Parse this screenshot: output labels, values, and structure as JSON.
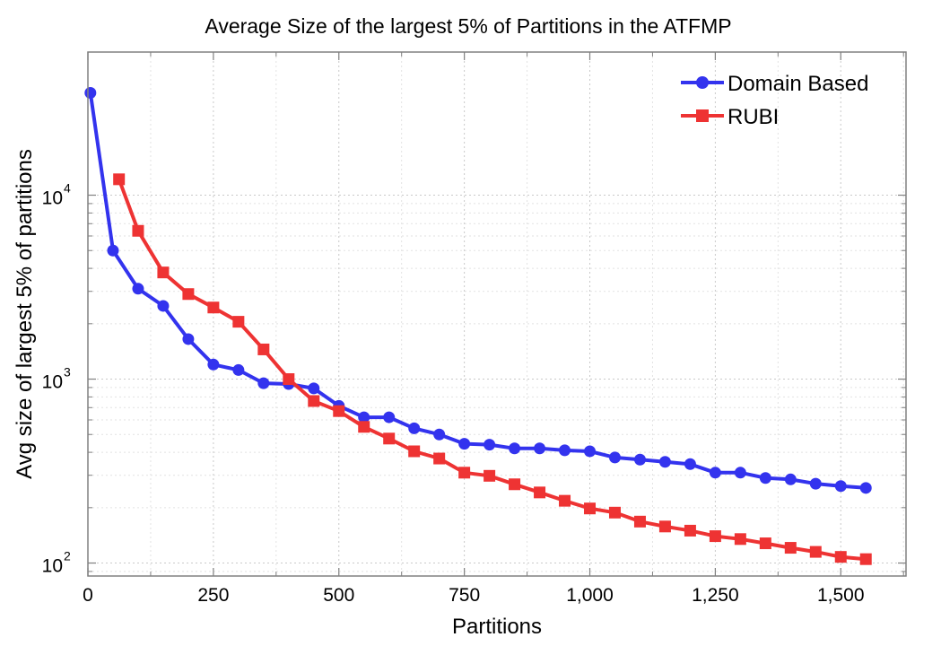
{
  "chart_data": {
    "type": "line",
    "title": "Average Size of the largest 5% of Partitions in the ATFMP",
    "xlabel": "Partitions",
    "ylabel": "Avg size of largest 5% of partitions",
    "xlim": [
      0,
      1630
    ],
    "ylim": [
      85,
      60000
    ],
    "yscale": "log",
    "grid": true,
    "legend_position": "top-right",
    "x_ticks": [
      {
        "value": 0,
        "label": "0"
      },
      {
        "value": 250,
        "label": "250"
      },
      {
        "value": 500,
        "label": "500"
      },
      {
        "value": 750,
        "label": "750"
      },
      {
        "value": 1000,
        "label": "1,000"
      },
      {
        "value": 1250,
        "label": "1,250"
      },
      {
        "value": 1500,
        "label": "1,500"
      }
    ],
    "y_ticks": [
      {
        "value": 100,
        "base": "10",
        "exp": "2"
      },
      {
        "value": 1000,
        "base": "10",
        "exp": "3"
      },
      {
        "value": 10000,
        "base": "10",
        "exp": "4"
      }
    ],
    "series": [
      {
        "name": "Domain Based",
        "color": "#3333ee",
        "marker": "circle",
        "x": [
          5,
          50,
          100,
          150,
          200,
          250,
          300,
          350,
          400,
          450,
          500,
          550,
          600,
          650,
          700,
          750,
          800,
          850,
          900,
          950,
          1000,
          1050,
          1100,
          1150,
          1200,
          1250,
          1300,
          1350,
          1400,
          1450,
          1500,
          1550
        ],
        "y": [
          36000,
          5000,
          3100,
          2500,
          1650,
          1200,
          1120,
          950,
          940,
          890,
          715,
          620,
          620,
          540,
          500,
          445,
          440,
          420,
          420,
          410,
          405,
          375,
          365,
          355,
          345,
          310,
          310,
          290,
          285,
          270,
          262,
          256
        ]
      },
      {
        "name": "RUBI",
        "color": "#ee3333",
        "marker": "square",
        "x": [
          62,
          100,
          150,
          200,
          250,
          300,
          350,
          400,
          450,
          500,
          550,
          600,
          650,
          700,
          750,
          800,
          850,
          900,
          950,
          1000,
          1050,
          1100,
          1150,
          1200,
          1250,
          1300,
          1350,
          1400,
          1450,
          1500,
          1550
        ],
        "y": [
          12200,
          6400,
          3800,
          2900,
          2450,
          2050,
          1450,
          1000,
          760,
          670,
          550,
          475,
          405,
          370,
          310,
          298,
          268,
          242,
          218,
          198,
          188,
          168,
          158,
          150,
          140,
          135,
          128,
          121,
          115,
          108,
          105
        ]
      }
    ]
  }
}
